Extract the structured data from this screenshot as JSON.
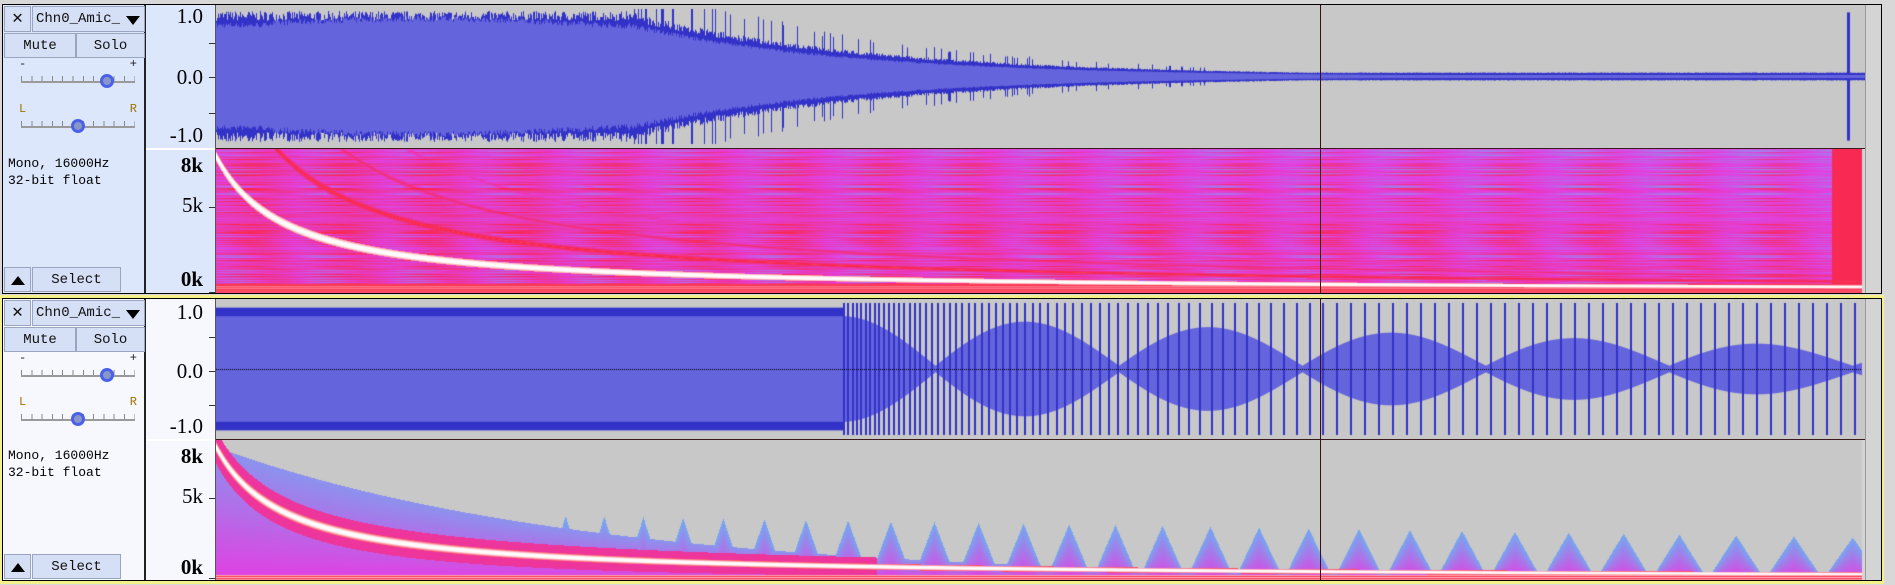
{
  "tracks": [
    {
      "name": "Chn0_Amic_",
      "close_label": "✕",
      "mute_label": "Mute",
      "solo_label": "Solo",
      "gain": {
        "min_label": "-",
        "max_label": "+",
        "value": 0.75
      },
      "pan": {
        "min_label": "L",
        "max_label": "R",
        "value": 0.5
      },
      "info_line1": "Mono, 16000Hz",
      "info_line2": "32-bit float",
      "select_label": "Select",
      "selected": false,
      "waveform_ruler": [
        "1.0",
        "0.0",
        "-1.0"
      ],
      "spectrum_ruler": [
        "8k",
        "5k",
        "0k"
      ]
    },
    {
      "name": "Chn0_Amic_",
      "close_label": "✕",
      "mute_label": "Mute",
      "solo_label": "Solo",
      "gain": {
        "min_label": "-",
        "max_label": "+",
        "value": 0.75
      },
      "pan": {
        "min_label": "L",
        "max_label": "R",
        "value": 0.5
      },
      "info_line1": "Mono, 16000Hz",
      "info_line2": "32-bit float",
      "select_label": "Select",
      "selected": true,
      "waveform_ruler": [
        "1.0",
        "0.0",
        "-1.0"
      ],
      "spectrum_ruler": [
        "8k",
        "5k",
        "0k"
      ]
    }
  ],
  "colors": {
    "waveform_peak": "#3232c8",
    "waveform_rms": "#6464dc",
    "background": "#c8c8c8",
    "selected_border": "#f4f08a",
    "cursor": "#3a1010"
  },
  "icons": [
    "close-icon",
    "dropdown-arrow-icon",
    "collapse-arrow-icon",
    "gain-slider-thumb",
    "pan-slider-thumb"
  ]
}
